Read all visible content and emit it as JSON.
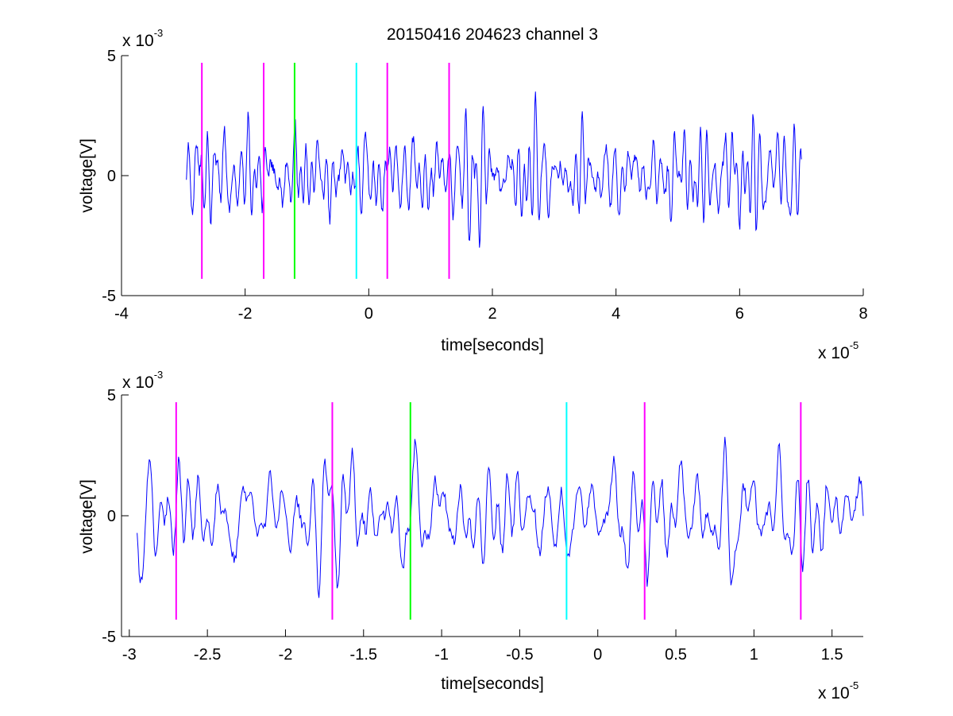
{
  "window": {
    "title": "20150416 204623 channel 3"
  },
  "chart_data": [
    {
      "type": "line",
      "title": "20150416 204623 channel 3",
      "xlabel": "time[seconds]",
      "ylabel": "voltage[V]",
      "x_exponent": {
        "base": "x 10",
        "power": "-5"
      },
      "y_exponent": {
        "base": "x 10",
        "power": "-3"
      },
      "xlim": [
        -4,
        8
      ],
      "ylim": [
        -5,
        5
      ],
      "xticks": [
        "-4",
        "-2",
        "0",
        "2",
        "4",
        "6",
        "8"
      ],
      "yticks": [
        "-5",
        "0",
        "5"
      ],
      "grid": false,
      "box": false,
      "trace": {
        "color": "#0000ff",
        "x_range": [
          -2.95,
          7.0
        ],
        "amplitude": 3.5,
        "seed": 20150416,
        "samples": 1000
      },
      "markers": [
        {
          "x": -2.7,
          "color": "#ff00ff"
        },
        {
          "x": -1.7,
          "color": "#ff00ff"
        },
        {
          "x": -1.2,
          "color": "#00ff00"
        },
        {
          "x": -0.2,
          "color": "#00ffff"
        },
        {
          "x": 0.3,
          "color": "#ff00ff"
        },
        {
          "x": 1.3,
          "color": "#ff00ff"
        }
      ],
      "marker_span": [
        -4.3,
        4.7
      ]
    },
    {
      "type": "line",
      "title": "",
      "xlabel": "time[seconds]",
      "ylabel": "voltage[V]",
      "x_exponent": {
        "base": "x 10",
        "power": "-5"
      },
      "y_exponent": {
        "base": "x 10",
        "power": "-3"
      },
      "xlim": [
        -3.05,
        1.7
      ],
      "ylim": [
        -5,
        5
      ],
      "xticks": [
        "-3",
        "-2.5",
        "-2",
        "-1.5",
        "-1",
        "-0.5",
        "0",
        "0.5",
        "1",
        "1.5"
      ],
      "yticks": [
        "-5",
        "0",
        "5"
      ],
      "grid": false,
      "box": false,
      "trace": {
        "color": "#0000ff",
        "x_range": [
          -2.95,
          1.7
        ],
        "amplitude": 3.4,
        "seed": 204623,
        "samples": 720
      },
      "markers": [
        {
          "x": -2.7,
          "color": "#ff00ff"
        },
        {
          "x": -1.7,
          "color": "#ff00ff"
        },
        {
          "x": -1.2,
          "color": "#00ff00"
        },
        {
          "x": -0.2,
          "color": "#00ffff"
        },
        {
          "x": 0.3,
          "color": "#ff00ff"
        },
        {
          "x": 1.3,
          "color": "#ff00ff"
        }
      ],
      "marker_span": [
        -4.3,
        4.7
      ]
    }
  ]
}
